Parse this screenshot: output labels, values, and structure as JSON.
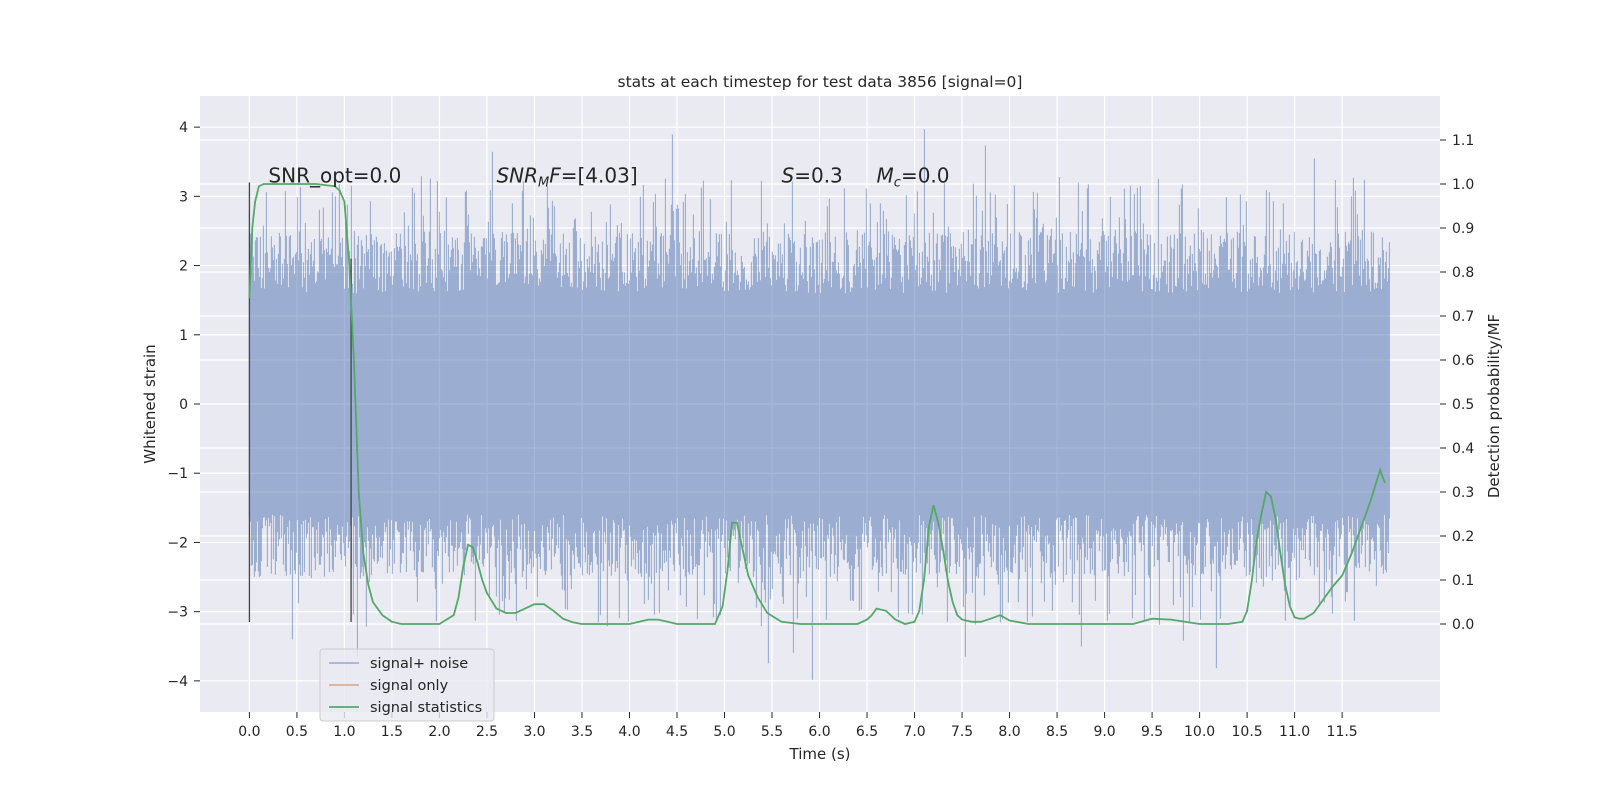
{
  "chart_data": {
    "type": "line",
    "title": "stats at each timestep for test data 3856 [signal=0]",
    "xlabel": "Time (s)",
    "ylabel_left": "Whitened strain",
    "ylabel_right": "Detection probability/MF",
    "xlim": [
      -0.52,
      12.53
    ],
    "ylim_left": [
      -4.45,
      4.45
    ],
    "ylim_right": [
      -0.2,
      1.2
    ],
    "grid": true,
    "x_ticks": [
      0.0,
      0.5,
      1.0,
      1.5,
      2.0,
      2.5,
      3.0,
      3.5,
      4.0,
      4.5,
      5.0,
      5.5,
      6.0,
      6.5,
      7.0,
      7.5,
      8.0,
      8.5,
      9.0,
      9.5,
      10.0,
      10.5,
      11.0,
      11.5
    ],
    "x_tick_labels": [
      "0.0",
      "0.5",
      "1.0",
      "1.5",
      "2.0",
      "2.5",
      "3.0",
      "3.5",
      "4.0",
      "4.5",
      "5.0",
      "5.5",
      "6.0",
      "6.5",
      "7.0",
      "7.5",
      "8.0",
      "8.5",
      "9.0",
      "9.5",
      "10.0",
      "10.5",
      "11.0",
      "11.5"
    ],
    "y_left_ticks": [
      -4,
      -3,
      -2,
      -1,
      0,
      1,
      2,
      3,
      4
    ],
    "y_left_tick_labels": [
      "−4",
      "−3",
      "−2",
      "−1",
      "0",
      "1",
      "2",
      "3",
      "4"
    ],
    "y_right_ticks": [
      0.0,
      0.1,
      0.2,
      0.3,
      0.4,
      0.5,
      0.6,
      0.7,
      0.8,
      0.9,
      1.0,
      1.1
    ],
    "y_right_tick_labels": [
      "0.0",
      "0.1",
      "0.2",
      "0.3",
      "0.4",
      "0.5",
      "0.6",
      "0.7",
      "0.8",
      "0.9",
      "1.0",
      "1.1"
    ],
    "annotations": [
      {
        "text": "SNR_opt=0.0",
        "x": 0.2,
        "y": 3.3
      },
      {
        "text": "SNR_M F=[4.03]",
        "x": 2.6,
        "y": 3.3
      },
      {
        "text": "S=0.3",
        "x": 5.6,
        "y": 3.3
      },
      {
        "text": "M_c=0.0",
        "x": 6.6,
        "y": 3.3
      }
    ],
    "vertical_lines": [
      {
        "x": 0.0,
        "ymin": -3.15,
        "ymax": 3.2
      },
      {
        "x": 1.07,
        "ymin": -3.15,
        "ymax": 2.1
      }
    ],
    "legend_position": "lower-left",
    "series": [
      {
        "name": "signal+ noise",
        "color": "#4c72b0",
        "axis": "left",
        "kind": "dense-noise",
        "x_range": [
          0.0,
          12.0
        ],
        "typical_abs": 1.6,
        "peak_max": 4.1,
        "peak_min": -4.05
      },
      {
        "name": "signal only",
        "color": "#dd8452",
        "axis": "left",
        "kind": "line",
        "x": [
          0.0,
          12.0
        ],
        "y": [
          0.0,
          0.0
        ]
      },
      {
        "name": "signal statistics",
        "color": "#55a868",
        "axis": "right",
        "x": [
          0.0,
          0.03,
          0.06,
          0.1,
          0.15,
          0.2,
          0.3,
          0.5,
          0.7,
          0.9,
          0.95,
          1.0,
          1.05,
          1.1,
          1.15,
          1.2,
          1.25,
          1.3,
          1.4,
          1.5,
          1.6,
          1.7,
          1.8,
          2.0,
          2.15,
          2.2,
          2.25,
          2.3,
          2.35,
          2.4,
          2.45,
          2.5,
          2.6,
          2.7,
          2.8,
          2.9,
          3.0,
          3.1,
          3.2,
          3.3,
          3.4,
          3.5,
          3.7,
          4.0,
          4.2,
          4.3,
          4.4,
          4.5,
          4.7,
          4.9,
          4.98,
          5.03,
          5.08,
          5.13,
          5.18,
          5.25,
          5.35,
          5.45,
          5.6,
          5.8,
          6.0,
          6.2,
          6.4,
          6.5,
          6.55,
          6.6,
          6.7,
          6.8,
          6.9,
          7.0,
          7.05,
          7.1,
          7.15,
          7.2,
          7.25,
          7.3,
          7.35,
          7.4,
          7.45,
          7.5,
          7.6,
          7.7,
          7.8,
          7.9,
          8.0,
          8.2,
          8.5,
          9.0,
          9.3,
          9.5,
          9.7,
          10.0,
          10.3,
          10.45,
          10.5,
          10.55,
          10.6,
          10.65,
          10.7,
          10.75,
          10.8,
          10.85,
          10.9,
          10.95,
          11.0,
          11.05,
          11.1,
          11.2,
          11.3,
          11.4,
          11.5,
          11.6,
          11.7,
          11.8,
          11.9,
          11.95
        ],
        "y": [
          0.74,
          0.9,
          0.96,
          0.995,
          1.0,
          1.0,
          1.0,
          1.0,
          1.0,
          0.995,
          0.985,
          0.96,
          0.82,
          0.6,
          0.3,
          0.16,
          0.09,
          0.05,
          0.02,
          0.005,
          0.0,
          0.0,
          0.0,
          0.0,
          0.02,
          0.06,
          0.13,
          0.18,
          0.175,
          0.14,
          0.1,
          0.07,
          0.035,
          0.025,
          0.025,
          0.035,
          0.045,
          0.045,
          0.03,
          0.012,
          0.004,
          0.0,
          0.0,
          0.0,
          0.01,
          0.01,
          0.005,
          0.0,
          0.0,
          0.0,
          0.04,
          0.12,
          0.23,
          0.23,
          0.18,
          0.11,
          0.06,
          0.025,
          0.005,
          0.0,
          0.0,
          0.0,
          0.0,
          0.01,
          0.02,
          0.035,
          0.03,
          0.01,
          0.0,
          0.005,
          0.03,
          0.1,
          0.22,
          0.27,
          0.23,
          0.17,
          0.1,
          0.05,
          0.02,
          0.01,
          0.005,
          0.005,
          0.012,
          0.02,
          0.008,
          0.0,
          0.0,
          0.0,
          0.0,
          0.012,
          0.01,
          0.0,
          0.0,
          0.005,
          0.03,
          0.1,
          0.19,
          0.25,
          0.3,
          0.29,
          0.24,
          0.16,
          0.09,
          0.04,
          0.015,
          0.012,
          0.012,
          0.025,
          0.055,
          0.085,
          0.11,
          0.16,
          0.22,
          0.28,
          0.35,
          0.32
        ]
      }
    ]
  }
}
